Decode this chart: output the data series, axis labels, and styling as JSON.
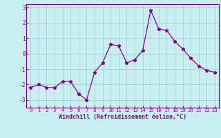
{
  "x": [
    0,
    1,
    2,
    3,
    4,
    5,
    6,
    7,
    8,
    9,
    10,
    11,
    12,
    13,
    14,
    15,
    16,
    17,
    18,
    19,
    20,
    21,
    22,
    23
  ],
  "y": [
    -2.2,
    -2.0,
    -2.2,
    -2.2,
    -1.8,
    -1.8,
    -2.6,
    -3.0,
    -1.2,
    -0.6,
    0.6,
    0.5,
    -0.6,
    -0.4,
    0.2,
    2.8,
    1.6,
    1.5,
    0.8,
    0.3,
    -0.3,
    -0.8,
    -1.1,
    -1.2
  ],
  "xlim": [
    -0.5,
    23.5
  ],
  "ylim": [
    -3.5,
    3.2
  ],
  "yticks": [
    -3,
    -2,
    -1,
    0,
    1,
    2,
    3
  ],
  "ytick_labels": [
    "-3",
    "-2",
    "-1",
    "0",
    "1",
    "2",
    "3"
  ],
  "xticks": [
    0,
    1,
    2,
    3,
    4,
    5,
    6,
    7,
    8,
    9,
    10,
    11,
    12,
    13,
    14,
    15,
    16,
    17,
    18,
    19,
    20,
    21,
    22,
    23
  ],
  "xlabel": "Windchill (Refroidissement éolien,°C)",
  "line_color": "#880088",
  "marker": "*",
  "markersize": 3.5,
  "linewidth": 0.9,
  "background_color": "#c8eef0",
  "grid_color": "#99cccc",
  "axis_color": "#880088",
  "tick_fontsize": 5.2,
  "xlabel_fontsize": 6.0
}
